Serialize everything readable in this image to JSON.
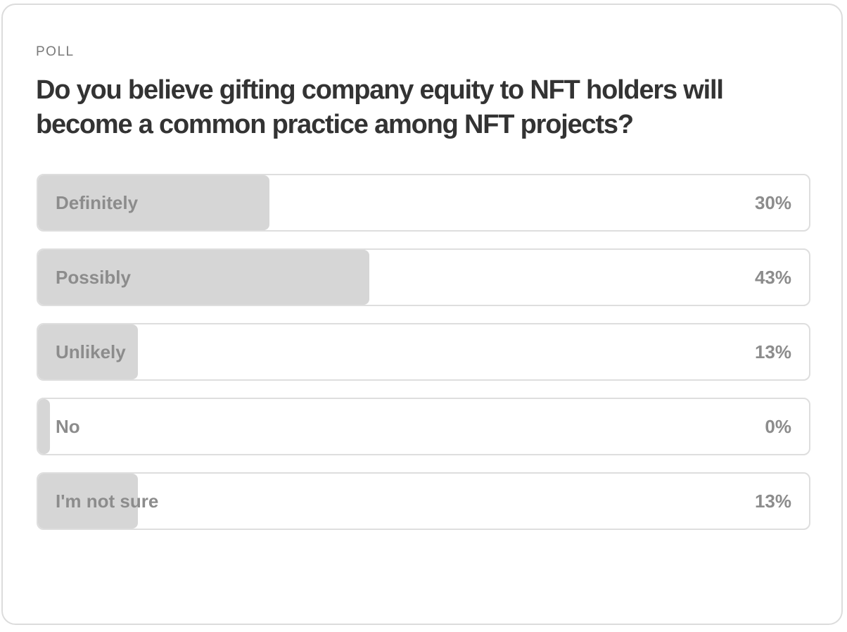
{
  "poll": {
    "label": "POLL",
    "question": "Do you believe gifting company equity to NFT holders will become a common practice among NFT projects?",
    "options": [
      {
        "label": "Definitely",
        "percent_text": "30%",
        "fill": 0.3
      },
      {
        "label": "Possibly",
        "percent_text": "43%",
        "fill": 0.43
      },
      {
        "label": "Unlikely",
        "percent_text": "13%",
        "fill": 0.13
      },
      {
        "label": "No",
        "percent_text": "0%",
        "fill": 0.0
      },
      {
        "label": "I'm not sure",
        "percent_text": "13%",
        "fill": 0.13
      }
    ]
  },
  "colors": {
    "fill": "#d6d6d6",
    "border": "#dedede",
    "text": "#8c8c8c",
    "question": "#333333"
  }
}
